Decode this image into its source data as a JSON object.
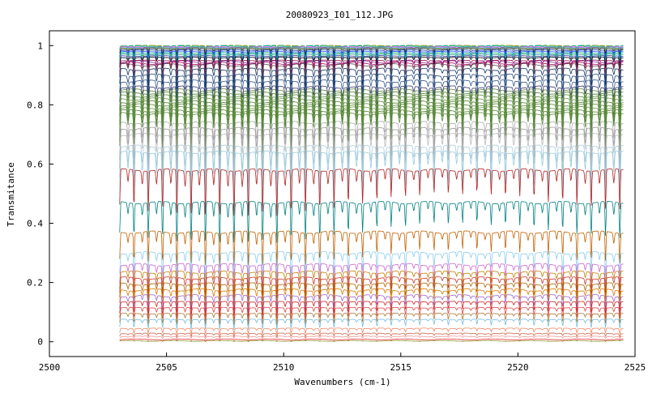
{
  "chart_data": {
    "type": "line",
    "title": "20080923_I01_112.JPG",
    "xlabel": "Wavenumbers (cm-1)",
    "ylabel": "Transmitance",
    "xlim": [
      2500,
      2525
    ],
    "ylim": [
      -0.05,
      1.05
    ],
    "xticks": [
      2500,
      2505,
      2510,
      2515,
      2520,
      2525
    ],
    "yticks": [
      0,
      0.2,
      0.4,
      0.6,
      0.8,
      1
    ],
    "ytick_labels": [
      "0",
      "0.2",
      "0.4",
      "0.6",
      "0.8",
      "1"
    ],
    "grid": false,
    "legend": "none",
    "x_range_of_data": [
      2503,
      2524.5
    ],
    "line_spacing_cm1": 0.61,
    "series": [
      {
        "color": "#e8a000",
        "baseline": 1.0,
        "dip_depth": 0.01
      },
      {
        "color": "#44aa44",
        "baseline": 1.0,
        "dip_depth": 0.012
      },
      {
        "color": "#00bcbc",
        "baseline": 0.998,
        "dip_depth": 0.014
      },
      {
        "color": "#ff66cc",
        "baseline": 0.996,
        "dip_depth": 0.016
      },
      {
        "color": "#4477ff",
        "baseline": 0.994,
        "dip_depth": 0.018
      },
      {
        "color": "#88cc44",
        "baseline": 0.992,
        "dip_depth": 0.02
      },
      {
        "color": "#222222",
        "baseline": 0.99,
        "dip_depth": 0.022
      },
      {
        "color": "#002a99",
        "baseline": 0.985,
        "dip_depth": 0.028
      },
      {
        "color": "#2255ff",
        "baseline": 0.98,
        "dip_depth": 0.03
      },
      {
        "color": "#00aa66",
        "baseline": 0.975,
        "dip_depth": 0.034
      },
      {
        "color": "#229999",
        "baseline": 0.97,
        "dip_depth": 0.036
      },
      {
        "color": "#333399",
        "baseline": 0.965,
        "dip_depth": 0.04
      },
      {
        "color": "#000000",
        "baseline": 0.96,
        "dip_depth": 0.045
      },
      {
        "color": "#990055",
        "baseline": 0.95,
        "dip_depth": 0.05
      },
      {
        "color": "#993399",
        "baseline": 0.945,
        "dip_depth": 0.055
      },
      {
        "color": "#aa1155",
        "baseline": 0.94,
        "dip_depth": 0.06
      },
      {
        "color": "#555555",
        "baseline": 0.935,
        "dip_depth": 0.06
      },
      {
        "color": "#113366",
        "baseline": 0.92,
        "dip_depth": 0.07
      },
      {
        "color": "#224477",
        "baseline": 0.9,
        "dip_depth": 0.08
      },
      {
        "color": "#335588",
        "baseline": 0.88,
        "dip_depth": 0.09
      },
      {
        "color": "#333366",
        "baseline": 0.86,
        "dip_depth": 0.1
      },
      {
        "color": "#5a8a3a",
        "baseline": 0.85,
        "dip_depth": 0.11
      },
      {
        "color": "#4f7f30",
        "baseline": 0.84,
        "dip_depth": 0.11
      },
      {
        "color": "#5a8a3a",
        "baseline": 0.83,
        "dip_depth": 0.12
      },
      {
        "color": "#6a9a4a",
        "baseline": 0.82,
        "dip_depth": 0.12
      },
      {
        "color": "#4f7f30",
        "baseline": 0.81,
        "dip_depth": 0.13
      },
      {
        "color": "#5a8a3a",
        "baseline": 0.8,
        "dip_depth": 0.13
      },
      {
        "color": "#6a9a4a",
        "baseline": 0.79,
        "dip_depth": 0.14
      },
      {
        "color": "#4f7f30",
        "baseline": 0.78,
        "dip_depth": 0.14
      },
      {
        "color": "#5a8a3a",
        "baseline": 0.77,
        "dip_depth": 0.15
      },
      {
        "color": "#aaaaaa",
        "baseline": 0.74,
        "dip_depth": 0.17
      },
      {
        "color": "#999999",
        "baseline": 0.72,
        "dip_depth": 0.18
      },
      {
        "color": "#bbbbbb",
        "baseline": 0.7,
        "dip_depth": 0.19
      },
      {
        "color": "#aaccdd",
        "baseline": 0.66,
        "dip_depth": 0.21
      },
      {
        "color": "#99ccdd",
        "baseline": 0.64,
        "dip_depth": 0.22
      },
      {
        "color": "#b22222",
        "baseline": 0.58,
        "dip_depth": 0.16
      },
      {
        "color": "#008080",
        "baseline": 0.47,
        "dip_depth": 0.14
      },
      {
        "color": "#c06000",
        "baseline": 0.37,
        "dip_depth": 0.12
      },
      {
        "color": "#88ccee",
        "baseline": 0.3,
        "dip_depth": 0.09
      },
      {
        "color": "#cc66cc",
        "baseline": 0.26,
        "dip_depth": 0.08
      },
      {
        "color": "#c08000",
        "baseline": 0.235,
        "dip_depth": 0.075
      },
      {
        "color": "#cc3333",
        "baseline": 0.215,
        "dip_depth": 0.07
      },
      {
        "color": "#aa6600",
        "baseline": 0.195,
        "dip_depth": 0.065
      },
      {
        "color": "#dd7700",
        "baseline": 0.175,
        "dip_depth": 0.06
      },
      {
        "color": "#9966cc",
        "baseline": 0.155,
        "dip_depth": 0.055
      },
      {
        "color": "#cc2222",
        "baseline": 0.135,
        "dip_depth": 0.05
      },
      {
        "color": "#dd4444",
        "baseline": 0.115,
        "dip_depth": 0.045
      },
      {
        "color": "#aa7733",
        "baseline": 0.095,
        "dip_depth": 0.04
      },
      {
        "color": "#77bbdd",
        "baseline": 0.075,
        "dip_depth": 0.035
      },
      {
        "color": "#ee8866",
        "baseline": 0.045,
        "dip_depth": 0.02
      },
      {
        "color": "#cc6644",
        "baseline": 0.028,
        "dip_depth": 0.012
      },
      {
        "color": "#ee9999",
        "baseline": 0.018,
        "dip_depth": 0.008
      },
      {
        "color": "#dd3333",
        "baseline": 0.008,
        "dip_depth": 0.004
      },
      {
        "color": "#999933",
        "baseline": 0.003,
        "dip_depth": 0.002
      }
    ]
  }
}
